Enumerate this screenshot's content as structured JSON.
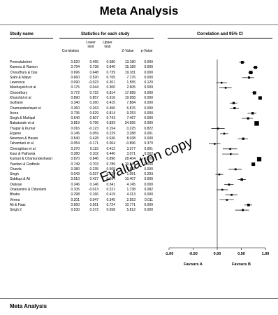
{
  "title": "Meta Analysis",
  "headers": {
    "study_name": "Study name",
    "stats": "Statistics for each study",
    "ci": "Correlation and 95% CI",
    "columns": [
      "Correlation",
      "Lower limit",
      "Upper limit",
      "Z-Value",
      "p-Value"
    ]
  },
  "bottom_title": "Meta Analysis",
  "watermark": "Evaluation copy",
  "chart_data": {
    "type": "forest",
    "title": "",
    "xlim": [
      -1.0,
      1.0
    ],
    "x_ticks": [
      "-1.00",
      "-0.50",
      "0.00",
      "0.50",
      "1.00"
    ],
    "x_tick_values": [
      -1.0,
      -0.5,
      0.0,
      0.5,
      1.0
    ],
    "favours_left": "Favours A",
    "favours_right": "Favours B",
    "studies": [
      {
        "name": "Premalakshmi",
        "r": "0.520",
        "lower": "0.455",
        "upper": "0.580",
        "z": "13.180",
        "p": "0.000"
      },
      {
        "name": "Kamoru & Ramon",
        "r": "0.794",
        "lower": "0.738",
        "upper": "0.840",
        "z": "15.189",
        "p": "0.000"
      },
      {
        "name": "Choudhury & Das",
        "r": "0.696",
        "lower": "0.648",
        "upper": "0.739",
        "z": "19.181",
        "p": "0.000"
      },
      {
        "name": "Siahi & Maiyo",
        "r": "0.660",
        "lower": "0.520",
        "upper": "0.765",
        "z": "7.176",
        "p": "0.000"
      },
      {
        "name": "Lawrence",
        "r": "0.090",
        "lower": "-0.023",
        "upper": "0.201",
        "z": "1.555",
        "p": "0.120"
      },
      {
        "name": "Mashayekhi et al",
        "r": "0.175",
        "lower": "0.044",
        "upper": "0.300",
        "z": "2.605",
        "p": "0.009"
      },
      {
        "name": "Chowdhury",
        "r": "0.772",
        "lower": "0.722",
        "upper": "0.814",
        "z": "17.689",
        "p": "0.000"
      },
      {
        "name": "Khurshid et al",
        "r": "0.890",
        "lower": "0.857",
        "upper": "0.916",
        "z": "19.958",
        "p": "0.000"
      },
      {
        "name": "Gulhane",
        "r": "0.340",
        "lower": "0.260",
        "upper": "0.415",
        "z": "7.884",
        "p": "0.000"
      },
      {
        "name": "Chamundeshwari et",
        "r": "0.360",
        "lower": "0.263",
        "upper": "0.450",
        "z": "6.876",
        "p": "0.000"
      },
      {
        "name": "Arora",
        "r": "0.735",
        "lower": "0.629",
        "upper": "0.814",
        "z": "9.253",
        "p": "0.000"
      },
      {
        "name": "Singh & Mahipal",
        "r": "0.640",
        "lower": "0.507",
        "upper": "0.743",
        "z": "7.467",
        "p": "0.000"
      },
      {
        "name": "Babatunde et al",
        "r": "0.819",
        "lower": "0.796",
        "upper": "0.839",
        "z": "34.555",
        "p": "0.000"
      },
      {
        "name": "Thapar & Kumar",
        "r": "0.016",
        "lower": "-0.123",
        "upper": "0.154",
        "z": "0.225",
        "p": "0.822"
      },
      {
        "name": "Ergene",
        "r": "0.145",
        "lower": "0.059",
        "upper": "0.229",
        "z": "3.288",
        "p": "0.001"
      },
      {
        "name": "Newman & Hasan",
        "r": "0.540",
        "lower": "0.428",
        "upper": "0.636",
        "z": "8.038",
        "p": "0.000"
      },
      {
        "name": "Tahamtani et al",
        "r": "-0.054",
        "lower": "-0.171",
        "upper": "0.064",
        "z": "-0.896",
        "p": "0.370"
      },
      {
        "name": "Cheraghian et al",
        "r": "0.270",
        "lower": "0.115",
        "upper": "0.412",
        "z": "3.377",
        "p": "0.001"
      },
      {
        "name": "Kaur & Pathania",
        "r": "0.280",
        "lower": "0.102",
        "upper": "0.440",
        "z": "3.071",
        "p": "0.002"
      },
      {
        "name": "Kumari & Chamundeshwari",
        "r": "0.870",
        "lower": "0.846",
        "upper": "0.890",
        "z": "28.404",
        "p": "0.000"
      },
      {
        "name": "Yazdani & Godbole",
        "r": "0.749",
        "lower": "0.703",
        "upper": "0.789",
        "z": "19.341",
        "p": "0.000"
      },
      {
        "name": "Chawla",
        "r": "0.380",
        "lower": "0.235",
        "upper": "0.509",
        "z": "4.867",
        "p": "0.000"
      },
      {
        "name": "Singh",
        "r": "0.043",
        "lower": "-0.037",
        "upper": "0.123",
        "z": "1.051",
        "p": "0.293"
      },
      {
        "name": "Siddiqui & Ali",
        "r": "0.510",
        "lower": "0.427",
        "upper": "0.594",
        "z": "10.407",
        "p": "0.000"
      },
      {
        "name": "Olatoye",
        "r": "0.246",
        "lower": "0.146",
        "upper": "0.341",
        "z": "4.745",
        "p": "0.000"
      },
      {
        "name": "Onabamiro & Odunlami",
        "r": "0.105",
        "lower": "-0.013",
        "upper": "0.221",
        "z": "1.738",
        "p": "0.082"
      },
      {
        "name": "Bhatia",
        "r": "0.298",
        "lower": "0.166",
        "upper": "0.419",
        "z": "4.313",
        "p": "0.000"
      },
      {
        "name": "Verma",
        "r": "0.201",
        "lower": "0.047",
        "upper": "0.345",
        "z": "2.553",
        "p": "0.011"
      },
      {
        "name": "Ali & Faaz",
        "r": "0.650",
        "lower": "0.561",
        "upper": "0.724",
        "z": "10.771",
        "p": "0.000"
      },
      {
        "name": "Singh 2",
        "r": "0.530",
        "lower": "0.372",
        "upper": "0.658",
        "z": "5.812",
        "p": "0.000"
      }
    ]
  }
}
